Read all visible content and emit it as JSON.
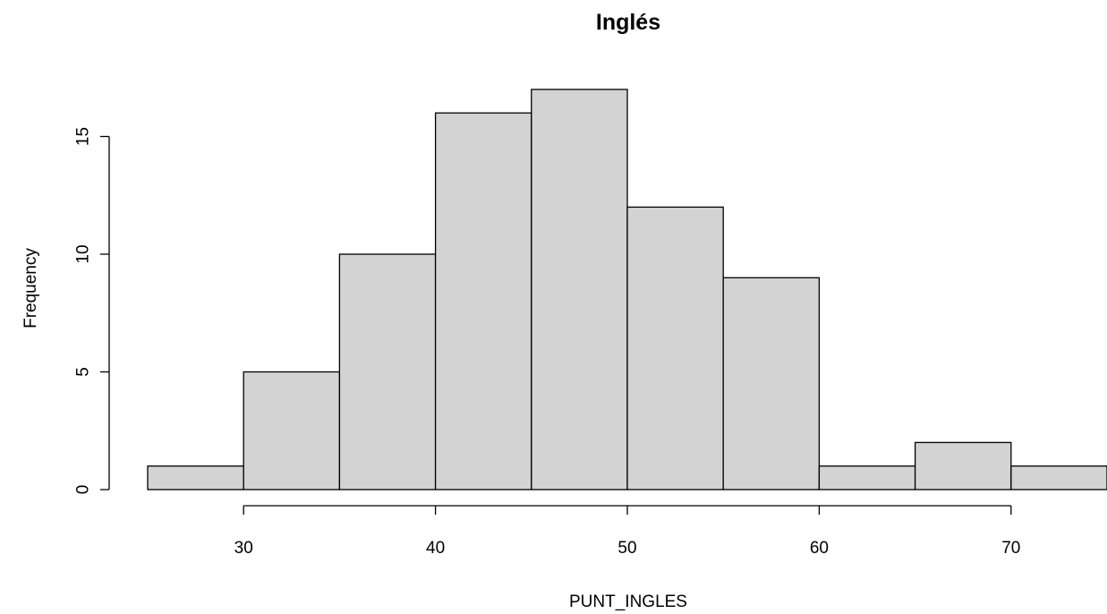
{
  "chart_data": {
    "type": "bar",
    "title": "Inglés",
    "xlabel": "PUNT_INGLES",
    "ylabel": "Frequency",
    "bins": [
      {
        "from": 25,
        "to": 30,
        "count": 1
      },
      {
        "from": 30,
        "to": 35,
        "count": 5
      },
      {
        "from": 35,
        "to": 40,
        "count": 10
      },
      {
        "from": 40,
        "to": 45,
        "count": 16
      },
      {
        "from": 45,
        "to": 50,
        "count": 17
      },
      {
        "from": 50,
        "to": 55,
        "count": 12
      },
      {
        "from": 55,
        "to": 60,
        "count": 9
      },
      {
        "from": 60,
        "to": 65,
        "count": 1
      },
      {
        "from": 65,
        "to": 70,
        "count": 2
      },
      {
        "from": 70,
        "to": 75,
        "count": 1
      }
    ],
    "x_ticks": [
      30,
      40,
      50,
      60,
      70
    ],
    "y_ticks": [
      0,
      5,
      10,
      15
    ],
    "bar_fill": "#d3d3d3",
    "bar_stroke": "#000000",
    "grid": false
  }
}
